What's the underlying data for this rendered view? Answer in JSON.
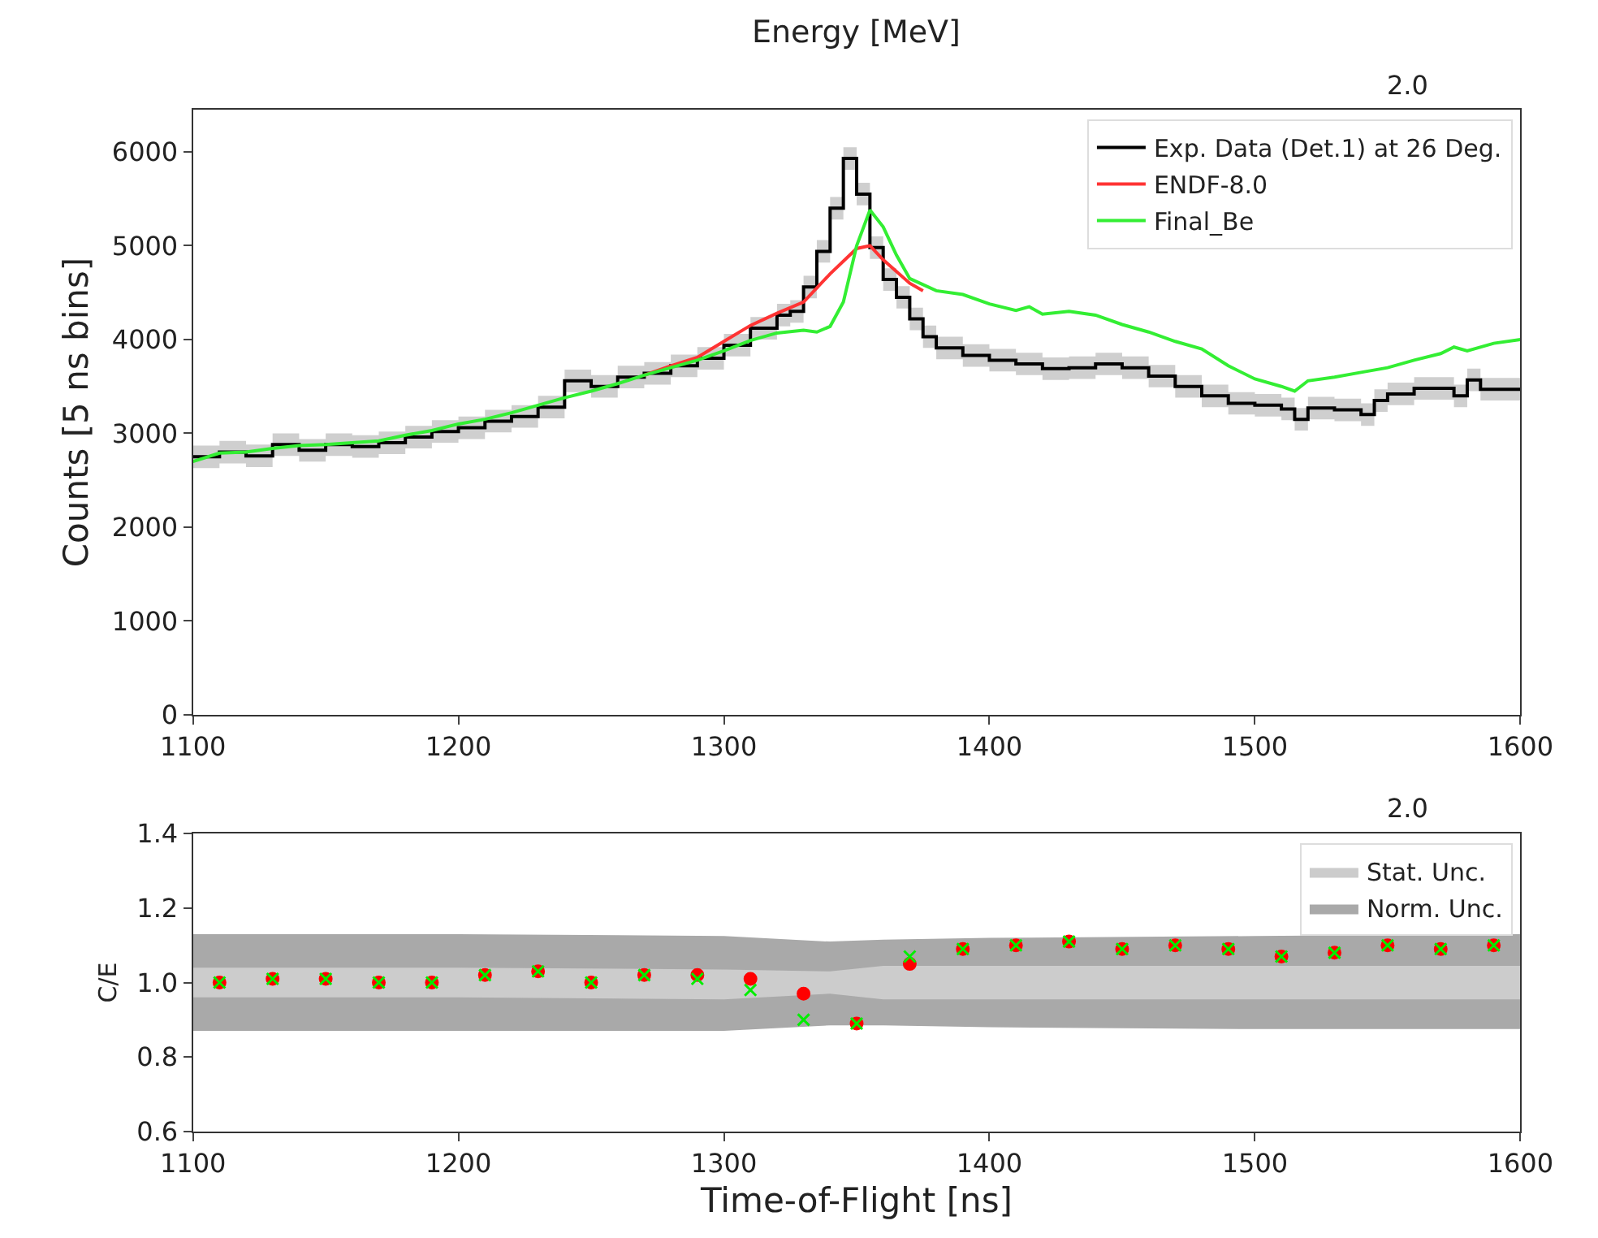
{
  "chart_data": [
    {
      "type": "line",
      "x2label": "Energy [MeV]",
      "ylabel": "Counts [5 ns bins]",
      "xlim": [
        1100,
        1600
      ],
      "xticks": [
        1100,
        1200,
        1300,
        1400,
        1500,
        1600
      ],
      "ylim": [
        0,
        6450
      ],
      "yticks": [
        0,
        1000,
        2000,
        3000,
        4000,
        5000,
        6000
      ],
      "annotations": [
        "2.0"
      ],
      "legend": "top right",
      "series": [
        {
          "name": "Exp. Data (Det.1) at 26 Deg.",
          "type": "step",
          "color": "#000000",
          "x": [
            1100,
            1110,
            1120,
            1130,
            1140,
            1150,
            1160,
            1170,
            1180,
            1190,
            1200,
            1210,
            1220,
            1230,
            1240,
            1250,
            1260,
            1270,
            1280,
            1290,
            1300,
            1310,
            1320,
            1325,
            1330,
            1335,
            1340,
            1345,
            1350,
            1355,
            1360,
            1365,
            1370,
            1375,
            1380,
            1390,
            1400,
            1410,
            1420,
            1430,
            1440,
            1450,
            1460,
            1470,
            1480,
            1490,
            1500,
            1510,
            1515,
            1520,
            1530,
            1540,
            1545,
            1550,
            1560,
            1575,
            1580,
            1585,
            1600
          ],
          "values": [
            2750,
            2800,
            2760,
            2880,
            2820,
            2880,
            2860,
            2900,
            2960,
            3020,
            3060,
            3130,
            3180,
            3280,
            3560,
            3500,
            3600,
            3640,
            3720,
            3800,
            3940,
            4120,
            4260,
            4300,
            4560,
            4940,
            5400,
            5930,
            5550,
            4980,
            4640,
            4450,
            4220,
            4030,
            3910,
            3830,
            3780,
            3740,
            3690,
            3700,
            3740,
            3700,
            3610,
            3500,
            3400,
            3320,
            3300,
            3260,
            3150,
            3270,
            3250,
            3200,
            3350,
            3420,
            3480,
            3400,
            3570,
            3470,
            3470
          ],
          "lower": [
            2630,
            2680,
            2640,
            2760,
            2700,
            2760,
            2740,
            2780,
            2840,
            2900,
            2940,
            3010,
            3060,
            3160,
            3440,
            3380,
            3480,
            3520,
            3600,
            3680,
            3820,
            4000,
            4140,
            4180,
            4440,
            4820,
            5280,
            5810,
            5430,
            4860,
            4520,
            4330,
            4100,
            3910,
            3790,
            3710,
            3660,
            3620,
            3570,
            3580,
            3620,
            3580,
            3490,
            3380,
            3280,
            3200,
            3180,
            3140,
            3030,
            3150,
            3130,
            3080,
            3230,
            3300,
            3360,
            3280,
            3450,
            3350,
            3350
          ],
          "upper": [
            2870,
            2920,
            2880,
            3000,
            2940,
            3000,
            2980,
            3020,
            3080,
            3140,
            3180,
            3250,
            3300,
            3400,
            3680,
            3620,
            3720,
            3760,
            3840,
            3920,
            4060,
            4240,
            4380,
            4420,
            4680,
            5060,
            5520,
            6050,
            5670,
            5100,
            4760,
            4570,
            4340,
            4150,
            4030,
            3950,
            3900,
            3860,
            3810,
            3820,
            3860,
            3820,
            3730,
            3620,
            3520,
            3440,
            3420,
            3380,
            3270,
            3390,
            3370,
            3320,
            3470,
            3540,
            3600,
            3520,
            3690,
            3590,
            3590
          ]
        },
        {
          "name": "ENDF-8.0",
          "color": "#ff3333",
          "x": [
            1270,
            1280,
            1290,
            1300,
            1310,
            1320,
            1330,
            1340,
            1350,
            1355,
            1360,
            1370,
            1375
          ],
          "values": [
            3620,
            3720,
            3810,
            3980,
            4150,
            4280,
            4400,
            4700,
            4970,
            5000,
            4850,
            4600,
            4520
          ]
        },
        {
          "name": "Final_Be",
          "color": "#33ee33",
          "x": [
            1100,
            1110,
            1120,
            1130,
            1140,
            1150,
            1160,
            1170,
            1180,
            1190,
            1200,
            1210,
            1220,
            1230,
            1240,
            1250,
            1260,
            1270,
            1280,
            1290,
            1300,
            1310,
            1320,
            1330,
            1335,
            1340,
            1345,
            1350,
            1355,
            1360,
            1365,
            1370,
            1380,
            1390,
            1400,
            1410,
            1415,
            1420,
            1430,
            1440,
            1450,
            1460,
            1470,
            1480,
            1490,
            1500,
            1510,
            1515,
            1520,
            1530,
            1540,
            1550,
            1560,
            1570,
            1575,
            1580,
            1590,
            1600
          ],
          "values": [
            2700,
            2790,
            2800,
            2840,
            2870,
            2880,
            2900,
            2920,
            2980,
            3030,
            3100,
            3150,
            3220,
            3300,
            3380,
            3450,
            3530,
            3620,
            3700,
            3780,
            3880,
            3990,
            4070,
            4100,
            4080,
            4140,
            4400,
            5000,
            5380,
            5200,
            4900,
            4650,
            4520,
            4480,
            4380,
            4310,
            4350,
            4270,
            4300,
            4260,
            4160,
            4080,
            3980,
            3900,
            3720,
            3580,
            3500,
            3450,
            3560,
            3600,
            3650,
            3700,
            3780,
            3850,
            3920,
            3880,
            3960,
            4000
          ]
        }
      ]
    },
    {
      "type": "scatter",
      "xlabel": "Time-of-Flight [ns]",
      "ylabel": "C/E",
      "xlim": [
        1100,
        1600
      ],
      "xticks": [
        1100,
        1200,
        1300,
        1400,
        1500,
        1600
      ],
      "ylim": [
        0.6,
        1.4
      ],
      "yticks": [
        {
          "value": 0.6,
          "label": "0.6"
        },
        {
          "value": 0.8,
          "label": "0.8"
        },
        {
          "value": 1.0,
          "label": "1.0"
        },
        {
          "value": 1.2,
          "label": "1.2"
        },
        {
          "value": 1.4,
          "label": "1.4"
        }
      ],
      "annotations": [
        "2.0"
      ],
      "legend": "top right",
      "series": [
        {
          "name": "Norm. Unc.",
          "type": "area",
          "color": "#a9a9a9",
          "x": [
            1100,
            1200,
            1300,
            1340,
            1360,
            1400,
            1500,
            1600
          ],
          "values": [
            null,
            null,
            null,
            null,
            null,
            null,
            null,
            null
          ],
          "lower": [
            0.87,
            0.87,
            0.87,
            0.885,
            0.885,
            0.88,
            0.875,
            0.875
          ],
          "upper": [
            1.13,
            1.13,
            1.125,
            1.11,
            1.115,
            1.12,
            1.125,
            1.13
          ]
        },
        {
          "name": "Stat. Unc.",
          "type": "area",
          "color": "#cccccc",
          "x": [
            1100,
            1200,
            1300,
            1340,
            1360,
            1400,
            1500,
            1600
          ],
          "values": [
            null,
            null,
            null,
            null,
            null,
            null,
            null,
            null
          ],
          "lower": [
            0.96,
            0.96,
            0.955,
            0.97,
            0.955,
            0.955,
            0.955,
            0.955
          ],
          "upper": [
            1.04,
            1.04,
            1.035,
            1.03,
            1.045,
            1.045,
            1.045,
            1.045
          ]
        },
        {
          "marker": "circle",
          "color": "#ff0000",
          "x": [
            1110,
            1130,
            1150,
            1170,
            1190,
            1210,
            1230,
            1250,
            1270,
            1290,
            1310,
            1330,
            1350,
            1370,
            1390,
            1410,
            1430,
            1450,
            1470,
            1490,
            1510,
            1530,
            1550,
            1570,
            1590
          ],
          "values": [
            1.0,
            1.01,
            1.01,
            1.0,
            1.0,
            1.02,
            1.03,
            1.0,
            1.02,
            1.02,
            1.01,
            0.97,
            0.89,
            1.05,
            1.09,
            1.1,
            1.11,
            1.09,
            1.1,
            1.09,
            1.07,
            1.08,
            1.1,
            1.09,
            1.1
          ]
        },
        {
          "marker": "cross",
          "color": "#00ee00",
          "x": [
            1110,
            1130,
            1150,
            1170,
            1190,
            1210,
            1230,
            1250,
            1270,
            1290,
            1310,
            1330,
            1350,
            1370,
            1390,
            1410,
            1430,
            1450,
            1470,
            1490,
            1510,
            1530,
            1550,
            1570,
            1590
          ],
          "values": [
            1.0,
            1.01,
            1.01,
            1.0,
            1.0,
            1.02,
            1.03,
            1.0,
            1.02,
            1.01,
            0.98,
            0.9,
            0.89,
            1.07,
            1.09,
            1.1,
            1.11,
            1.09,
            1.1,
            1.09,
            1.07,
            1.08,
            1.1,
            1.09,
            1.1
          ]
        }
      ]
    }
  ]
}
